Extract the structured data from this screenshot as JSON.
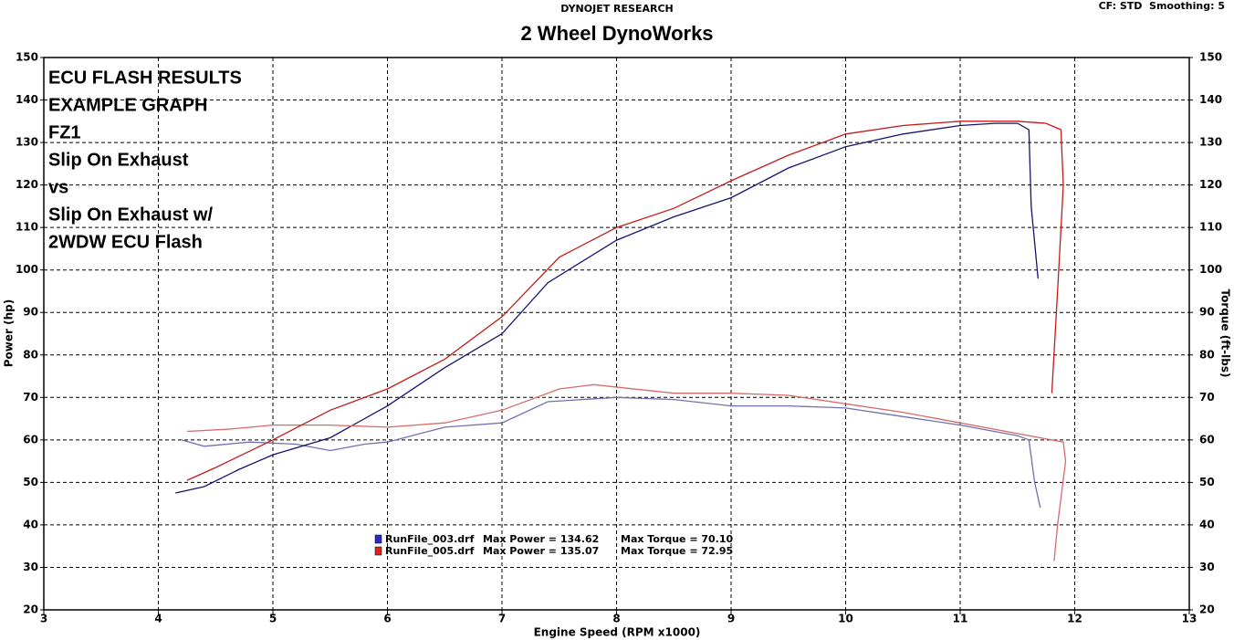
{
  "chart_data": {
    "type": "line",
    "header": "DYNOJET RESEARCH",
    "title": "2 Wheel DynoWorks",
    "settings_label": "CF: STD  Smoothing: 5",
    "x_label": "Engine Speed (RPM x1000)",
    "y_label": "Power (hp)",
    "y2_label": "Torque (ft-lbs)",
    "xlim": [
      3,
      13
    ],
    "xticks": [
      3,
      4,
      5,
      6,
      7,
      8,
      9,
      10,
      11,
      12,
      13
    ],
    "ylim": [
      20,
      150
    ],
    "yticks": [
      20,
      30,
      40,
      50,
      60,
      70,
      80,
      90,
      100,
      110,
      120,
      130,
      140,
      150
    ],
    "y2lim": [
      20,
      150
    ],
    "y2ticks": [
      20,
      30,
      40,
      50,
      60,
      70,
      80,
      90,
      100,
      110,
      120,
      130,
      140,
      150
    ],
    "grid": true,
    "annotations": [
      {
        "text": "ECU FLASH RESULTS",
        "color": "#000000"
      },
      {
        "text": "EXAMPLE GRAPH",
        "color": "#000000"
      },
      {
        "text": "FZ1",
        "color": "#000000"
      },
      {
        "text": "Slip On Exhaust",
        "color": "#1e9ad6"
      },
      {
        "text": "vs",
        "color": "#000000"
      },
      {
        "text": "Slip On Exhaust w/",
        "color": "#e02020"
      },
      {
        "text": "2WDW ECU Flash",
        "color": "#e02020"
      }
    ],
    "runs": [
      {
        "name": "RunFile_003.drf",
        "max_power": "Max Power = 134.62",
        "max_torque": "Max Torque = 70.10",
        "color": "#2a2ad0",
        "power": {
          "color": "#14146e",
          "x": [
            4.15,
            4.4,
            4.7,
            5.0,
            5.5,
            6.0,
            6.5,
            7.0,
            7.4,
            8.0,
            8.5,
            9.0,
            9.5,
            10.0,
            10.5,
            11.0,
            11.3,
            11.5,
            11.6,
            11.62,
            11.68
          ],
          "values": [
            47.5,
            49,
            53,
            56.5,
            60.5,
            68,
            77,
            85,
            97,
            107,
            112.5,
            117,
            124,
            129,
            132,
            134,
            134.5,
            134.5,
            133,
            115,
            98
          ]
        },
        "torque": {
          "color": "#7070b0",
          "x": [
            4.2,
            4.4,
            4.8,
            5.2,
            5.5,
            5.8,
            6.0,
            6.5,
            7.0,
            7.4,
            8.0,
            8.5,
            9.0,
            9.5,
            10.0,
            10.5,
            11.0,
            11.5,
            11.6,
            11.65,
            11.7
          ],
          "values": [
            60,
            58.5,
            59.5,
            59,
            57.5,
            59,
            59.5,
            63,
            64,
            69,
            70,
            69.5,
            68,
            68,
            67.5,
            65.5,
            63.5,
            61,
            60,
            50,
            44
          ]
        }
      },
      {
        "name": "RunFile_005.drf",
        "max_power": "Max Power = 135.07",
        "max_torque": "Max Torque = 72.95",
        "color": "#e02020",
        "power": {
          "color": "#c41a1a",
          "x": [
            4.25,
            4.5,
            5.0,
            5.5,
            6.0,
            6.5,
            7.0,
            7.5,
            8.0,
            8.5,
            9.0,
            9.5,
            10.0,
            10.5,
            11.0,
            11.5,
            11.75,
            11.88,
            11.9,
            11.85,
            11.8
          ],
          "values": [
            50.5,
            53.5,
            60,
            67,
            72,
            79,
            89,
            103,
            110,
            114.5,
            121,
            127,
            132,
            134,
            135,
            135,
            134.5,
            133,
            120,
            95,
            71
          ]
        },
        "torque": {
          "color": "#d86a6a",
          "x": [
            4.25,
            4.6,
            5.0,
            5.5,
            6.0,
            6.5,
            7.0,
            7.5,
            7.8,
            8.5,
            9.0,
            9.5,
            10.0,
            10.5,
            11.0,
            11.5,
            11.9,
            11.92,
            11.85,
            11.82
          ],
          "values": [
            62,
            62.5,
            63.5,
            63.5,
            63,
            64,
            67,
            72,
            73,
            71,
            71,
            70.5,
            68.5,
            66.5,
            64,
            61.5,
            59.5,
            55,
            40,
            31.5
          ]
        }
      }
    ]
  }
}
